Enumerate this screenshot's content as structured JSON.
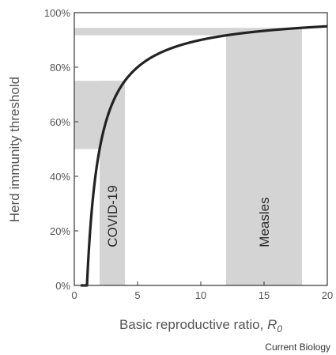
{
  "chart_data": {
    "type": "line",
    "xlabel": "Basic reproductive ratio, ",
    "xlabel_symbol": "R",
    "xlabel_subscript": "0",
    "ylabel": "Herd immunity threshold",
    "xlim": [
      0,
      20
    ],
    "ylim": [
      0,
      100
    ],
    "x_ticks": [
      0,
      5,
      10,
      15,
      20
    ],
    "y_ticks": [
      0,
      20,
      40,
      60,
      80,
      100
    ],
    "y_tick_labels": [
      "0%",
      "20%",
      "40%",
      "60%",
      "80%",
      "100%"
    ],
    "curve": {
      "formula": "threshold = 1 - 1/R0",
      "x": [
        0.5,
        1.0,
        1.1,
        1.25,
        1.5,
        2,
        2.5,
        3,
        4,
        5,
        6,
        8,
        10,
        12,
        15,
        18,
        20
      ],
      "y": [
        0,
        0,
        9.1,
        20,
        33.3,
        50,
        60,
        66.7,
        75,
        80,
        83.3,
        87.5,
        90,
        91.7,
        93.3,
        94.4,
        95
      ]
    },
    "bands": [
      {
        "name": "COVID-19",
        "x_range": [
          2,
          4
        ],
        "y_range": [
          50,
          75
        ]
      },
      {
        "name": "Measles",
        "x_range": [
          12,
          18
        ],
        "y_range": [
          91.7,
          94.4
        ]
      }
    ],
    "band_color": "#d4d4d4",
    "line_color": "#222222",
    "grid": false
  },
  "credit": "Current Biology"
}
